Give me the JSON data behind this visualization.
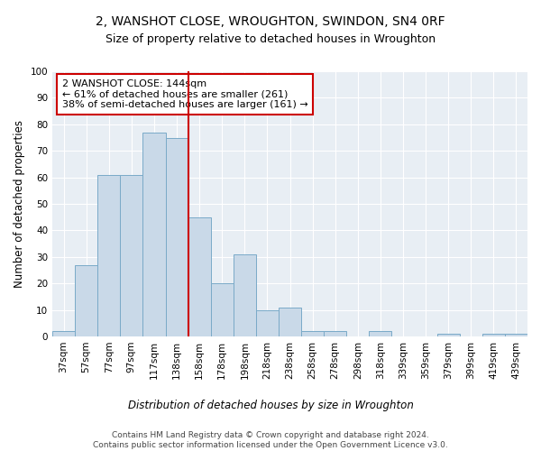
{
  "title": "2, WANSHOT CLOSE, WROUGHTON, SWINDON, SN4 0RF",
  "subtitle": "Size of property relative to detached houses in Wroughton",
  "xlabel": "Distribution of detached houses by size in Wroughton",
  "ylabel": "Number of detached properties",
  "bar_labels": [
    "37sqm",
    "57sqm",
    "77sqm",
    "97sqm",
    "117sqm",
    "138sqm",
    "158sqm",
    "178sqm",
    "198sqm",
    "218sqm",
    "238sqm",
    "258sqm",
    "278sqm",
    "298sqm",
    "318sqm",
    "339sqm",
    "359sqm",
    "379sqm",
    "399sqm",
    "419sqm",
    "439sqm"
  ],
  "bar_values": [
    2,
    27,
    61,
    61,
    77,
    75,
    45,
    20,
    31,
    10,
    11,
    2,
    2,
    0,
    2,
    0,
    0,
    1,
    0,
    1,
    1
  ],
  "bar_color": "#c9d9e8",
  "bar_edge_color": "#7aaac8",
  "vline_x": 5.5,
  "vline_color": "#cc0000",
  "annotation_line1": "2 WANSHOT CLOSE: 144sqm",
  "annotation_line2": "← 61% of detached houses are smaller (261)",
  "annotation_line3": "38% of semi-detached houses are larger (161) →",
  "annotation_box_color": "#ffffff",
  "annotation_box_edge_color": "#cc0000",
  "ylim": [
    0,
    100
  ],
  "yticks": [
    0,
    10,
    20,
    30,
    40,
    50,
    60,
    70,
    80,
    90,
    100
  ],
  "background_color": "#e8eef4",
  "footer_text": "Contains HM Land Registry data © Crown copyright and database right 2024.\nContains public sector information licensed under the Open Government Licence v3.0.",
  "title_fontsize": 10,
  "subtitle_fontsize": 9,
  "xlabel_fontsize": 8.5,
  "ylabel_fontsize": 8.5,
  "tick_fontsize": 7.5,
  "annotation_fontsize": 8,
  "footer_fontsize": 6.5
}
